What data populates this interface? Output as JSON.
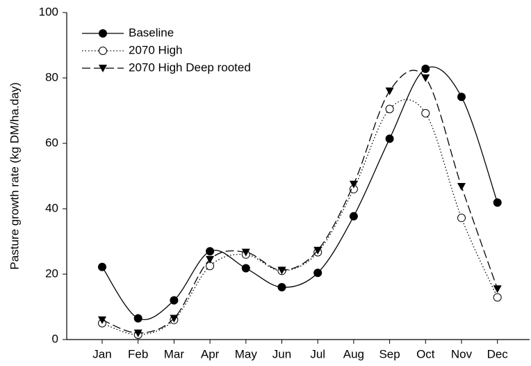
{
  "chart_data": {
    "type": "line",
    "y_label": "Pasture growth rate (kg DM/ha.day)",
    "categories": [
      "Jan",
      "Feb",
      "Mar",
      "Apr",
      "May",
      "Jun",
      "Jul",
      "Aug",
      "Sep",
      "Oct",
      "Nov",
      "Dec"
    ],
    "series": [
      {
        "name": "Baseline",
        "color": "#000000",
        "marker": "filled-circle",
        "line_style": "solid",
        "values": [
          22.2,
          6.5,
          12,
          27,
          21.8,
          16,
          20.4,
          37.7,
          61.4,
          82.8,
          74.2,
          41.9
        ]
      },
      {
        "name": "2070 High",
        "color": "#000000",
        "marker": "open-circle",
        "line_style": "dotted",
        "values": [
          5,
          1.5,
          6,
          22.5,
          26,
          21,
          26.7,
          46,
          70.5,
          69.2,
          37.2,
          12.9
        ]
      },
      {
        "name": "2070 High Deep rooted",
        "color": "#000000",
        "marker": "triangle-down",
        "line_style": "dashed",
        "values": [
          6,
          2,
          6.5,
          24.5,
          26.7,
          21.2,
          27.3,
          47.5,
          76,
          80,
          46.8,
          15.5
        ]
      }
    ],
    "ylim": [
      0,
      100
    ],
    "yticks": [
      0,
      20,
      40,
      60,
      80,
      100
    ],
    "legend": "top-left",
    "grid": false,
    "smooth": true
  }
}
